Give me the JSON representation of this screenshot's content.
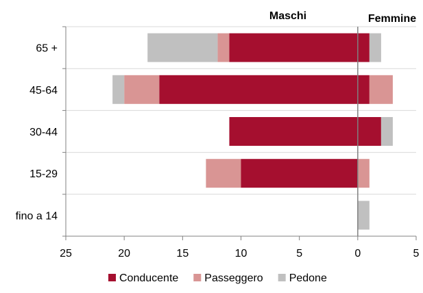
{
  "chart_data": {
    "type": "bar",
    "orientation": "horizontal",
    "stacked": true,
    "categories": [
      "65 +",
      "45-64",
      "30-44",
      "15-29",
      "fino a 14"
    ],
    "group_titles": {
      "left": "Maschi",
      "right": "Femmine"
    },
    "xlim": [
      -25,
      5
    ],
    "xticks": [
      -25,
      -20,
      -15,
      -10,
      -5,
      0,
      5
    ],
    "xtick_labels": [
      "25",
      "20",
      "15",
      "10",
      "5",
      "0",
      "5"
    ],
    "grid": "horizontal-category-lines",
    "legend_position": "bottom",
    "series": [
      {
        "name": "Conducente",
        "color": "#a50f2f",
        "maschi": [
          11,
          17,
          11,
          10,
          0
        ],
        "femmine": [
          1,
          1,
          2,
          0,
          0
        ]
      },
      {
        "name": "Passeggero",
        "color": "#d99594",
        "maschi": [
          1,
          3,
          0,
          3,
          0
        ],
        "femmine": [
          0,
          2,
          0,
          1,
          0
        ]
      },
      {
        "name": "Pedone",
        "color": "#c0c0c0",
        "maschi": [
          6,
          1,
          0,
          0,
          0
        ],
        "femmine": [
          1,
          0,
          1,
          0,
          1
        ]
      }
    ]
  }
}
